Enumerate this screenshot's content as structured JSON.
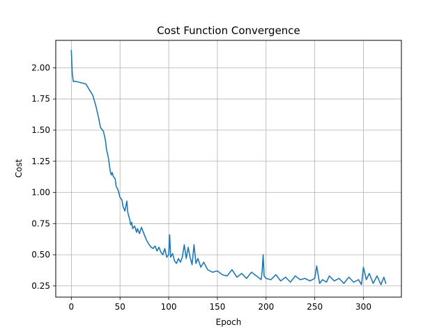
{
  "chart_data": {
    "type": "line",
    "title": "Cost Function Convergence",
    "xlabel": "Epoch",
    "ylabel": "Cost",
    "xlim": [
      -16,
      339
    ],
    "ylim": [
      0.16,
      2.22
    ],
    "grid": true,
    "xticks": [
      0,
      50,
      100,
      150,
      200,
      250,
      300
    ],
    "yticks": [
      0.25,
      0.5,
      0.75,
      1.0,
      1.25,
      1.5,
      1.75,
      2.0
    ],
    "ytick_labels": [
      "0.25",
      "0.50",
      "0.75",
      "1.00",
      "1.25",
      "1.50",
      "1.75",
      "2.00"
    ],
    "series_color": "#1f77b4",
    "series": [
      {
        "x": [
          0,
          1,
          2,
          5,
          10,
          15,
          18,
          22,
          25,
          28,
          30,
          33,
          35,
          36,
          38,
          40,
          41,
          42,
          43,
          45,
          46,
          48,
          50,
          52,
          53,
          55,
          57,
          58,
          60,
          61,
          62,
          63,
          65,
          67,
          68,
          70,
          72,
          75,
          77,
          80,
          82,
          84,
          86,
          88,
          90,
          92,
          94,
          96,
          98,
          100,
          101,
          102,
          104,
          106,
          108,
          110,
          112,
          114,
          116,
          118,
          120,
          122,
          124,
          126,
          128,
          130,
          133,
          136,
          140,
          145,
          150,
          155,
          160,
          165,
          170,
          175,
          180,
          185,
          190,
          195,
          196,
          197,
          198,
          200,
          205,
          210,
          215,
          220,
          225,
          230,
          235,
          240,
          245,
          250,
          252,
          255,
          258,
          262,
          265,
          270,
          275,
          280,
          285,
          290,
          295,
          298,
          300,
          303,
          306,
          310,
          314,
          318,
          321,
          323
        ],
        "y": [
          2.14,
          1.95,
          1.89,
          1.89,
          1.88,
          1.87,
          1.83,
          1.78,
          1.7,
          1.6,
          1.52,
          1.49,
          1.42,
          1.35,
          1.28,
          1.17,
          1.14,
          1.16,
          1.13,
          1.11,
          1.05,
          1.02,
          0.96,
          0.94,
          0.89,
          0.85,
          0.93,
          0.84,
          0.78,
          0.74,
          0.76,
          0.71,
          0.73,
          0.68,
          0.71,
          0.67,
          0.72,
          0.66,
          0.62,
          0.58,
          0.56,
          0.55,
          0.57,
          0.53,
          0.56,
          0.52,
          0.5,
          0.55,
          0.48,
          0.5,
          0.66,
          0.48,
          0.51,
          0.45,
          0.43,
          0.47,
          0.44,
          0.48,
          0.58,
          0.47,
          0.56,
          0.48,
          0.42,
          0.58,
          0.43,
          0.47,
          0.4,
          0.44,
          0.38,
          0.36,
          0.37,
          0.34,
          0.33,
          0.38,
          0.32,
          0.35,
          0.31,
          0.36,
          0.33,
          0.3,
          0.37,
          0.5,
          0.33,
          0.31,
          0.3,
          0.34,
          0.29,
          0.32,
          0.28,
          0.33,
          0.3,
          0.31,
          0.29,
          0.31,
          0.41,
          0.27,
          0.3,
          0.28,
          0.33,
          0.29,
          0.31,
          0.27,
          0.32,
          0.28,
          0.3,
          0.26,
          0.4,
          0.3,
          0.35,
          0.27,
          0.33,
          0.26,
          0.32,
          0.27
        ]
      }
    ]
  }
}
